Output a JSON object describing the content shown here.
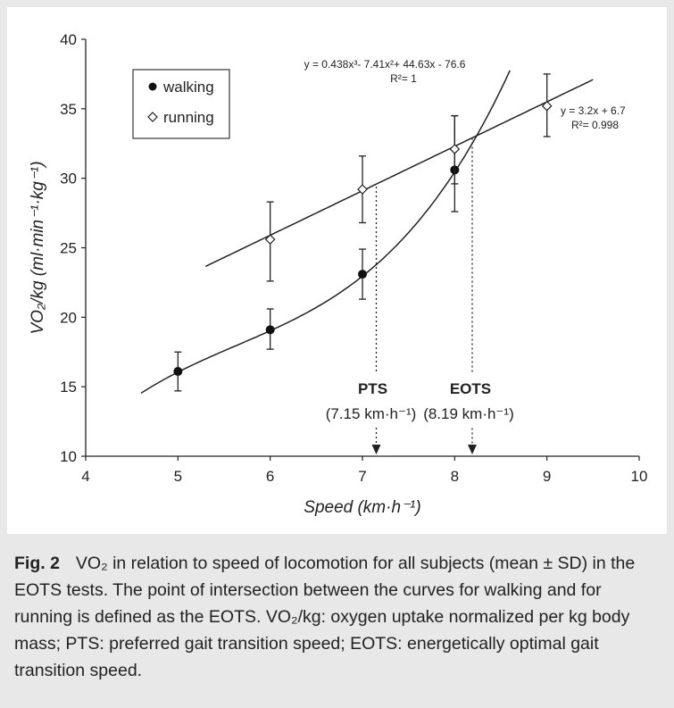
{
  "chart_data": {
    "type": "scatter",
    "xlabel": "Speed (km·h⁻¹)",
    "ylabel": "VO₂/kg (ml·min⁻¹·kg⁻¹)",
    "xlim": [
      4,
      10
    ],
    "ylim": [
      10,
      40
    ],
    "x_ticks": [
      4,
      5,
      6,
      7,
      8,
      9,
      10
    ],
    "y_ticks": [
      10,
      15,
      20,
      25,
      30,
      35,
      40
    ],
    "grid": false,
    "legend_position": "top-left",
    "series": [
      {
        "name": "walking",
        "marker": "filled-circle",
        "x": [
          5,
          6,
          7,
          8
        ],
        "y": [
          16.1,
          19.1,
          23.1,
          30.6
        ],
        "err_low": [
          14.7,
          17.7,
          21.3,
          27.6
        ],
        "err_high": [
          17.5,
          20.6,
          24.9,
          34.5
        ],
        "fit_equation": "y = 0.438x³- 7.41x²+ 44.63x - 76.6",
        "fit_r2": "R²= 1",
        "fit_coefficients": [
          0.438,
          -7.41,
          44.63,
          -76.6
        ],
        "fit_range": [
          4.6,
          8.6
        ]
      },
      {
        "name": "running",
        "marker": "open-diamond",
        "x": [
          6,
          7,
          8,
          9
        ],
        "y": [
          25.6,
          29.2,
          32.1,
          35.2
        ],
        "err_low": [
          22.6,
          26.8,
          29.6,
          33.0
        ],
        "err_high": [
          28.3,
          31.6,
          34.5,
          37.5
        ],
        "fit_equation": "y = 3.2x + 6.7",
        "fit_r2": "R²= 0.998",
        "fit_coefficients": [
          3.2,
          6.7
        ],
        "fit_range": [
          5.3,
          9.5
        ]
      }
    ],
    "annotations": {
      "pts": {
        "label": "PTS",
        "value": "(7.15 km·h⁻¹)",
        "x": 7.15,
        "y_top": 29.4
      },
      "eots": {
        "label": "EOTS",
        "value": "(8.19 km·h⁻¹)",
        "x": 8.19,
        "y_top": 32.9
      }
    }
  },
  "caption": {
    "fig_label": "Fig. 2",
    "text": "VO₂ in relation to speed of locomotion for all subjects (mean ± SD) in the EOTS tests. The point of intersection between the curves for walking and for running is defined as the EOTS. VO₂/kg: oxygen uptake normalized per kg body mass; PTS: preferred gait transition speed; EOTS: energetically optimal gait transition speed."
  }
}
